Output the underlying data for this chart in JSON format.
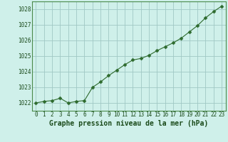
{
  "x": [
    0,
    1,
    2,
    3,
    4,
    5,
    6,
    7,
    8,
    9,
    10,
    11,
    12,
    13,
    14,
    15,
    16,
    17,
    18,
    19,
    20,
    21,
    22,
    23
  ],
  "y": [
    1022.0,
    1022.1,
    1022.15,
    1022.3,
    1022.0,
    1022.1,
    1022.15,
    1023.0,
    1023.35,
    1023.75,
    1024.1,
    1024.45,
    1024.75,
    1024.85,
    1025.05,
    1025.35,
    1025.6,
    1025.85,
    1026.15,
    1026.55,
    1026.95,
    1027.45,
    1027.85,
    1028.2
  ],
  "line_color": "#2d6a2d",
  "marker": "D",
  "marker_size": 2.5,
  "bg_color": "#cff0ea",
  "grid_color": "#a0c8c4",
  "xlabel": "Graphe pression niveau de la mer (hPa)",
  "xlabel_color": "#1a4a1a",
  "xlabel_fontsize": 7,
  "tick_color": "#1a4a1a",
  "tick_fontsize": 5.5,
  "ylim": [
    1021.5,
    1028.5
  ],
  "yticks": [
    1022,
    1023,
    1024,
    1025,
    1026,
    1027,
    1028
  ],
  "xlim": [
    -0.5,
    23.5
  ],
  "xticks": [
    0,
    1,
    2,
    3,
    4,
    5,
    6,
    7,
    8,
    9,
    10,
    11,
    12,
    13,
    14,
    15,
    16,
    17,
    18,
    19,
    20,
    21,
    22,
    23
  ]
}
